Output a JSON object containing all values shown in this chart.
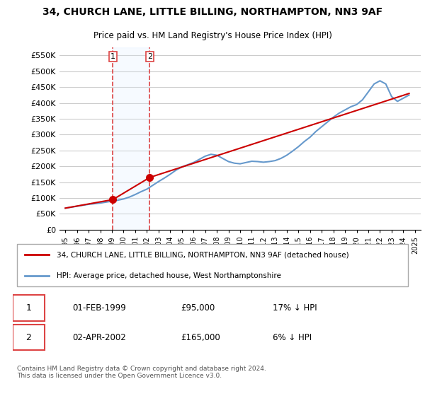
{
  "title": "34, CHURCH LANE, LITTLE BILLING, NORTHAMPTON, NN3 9AF",
  "subtitle": "Price paid vs. HM Land Registry's House Price Index (HPI)",
  "legend_line1": "34, CHURCH LANE, LITTLE BILLING, NORTHAMPTON, NN3 9AF (detached house)",
  "legend_line2": "HPI: Average price, detached house, West Northamptonshire",
  "transaction1_label": "1",
  "transaction1_date": "01-FEB-1999",
  "transaction1_price": "£95,000",
  "transaction1_hpi": "17% ↓ HPI",
  "transaction1_year": 1999.08,
  "transaction1_value": 95000,
  "transaction2_label": "2",
  "transaction2_date": "02-APR-2002",
  "transaction2_price": "£165,000",
  "transaction2_hpi": "6% ↓ HPI",
  "transaction2_year": 2002.25,
  "transaction2_value": 165000,
  "red_color": "#cc0000",
  "blue_color": "#6699cc",
  "marker_color": "#cc0000",
  "vertical_line_color": "#dd4444",
  "highlight_color": "#ddeeff",
  "background_color": "#ffffff",
  "grid_color": "#cccccc",
  "footer_text": "Contains HM Land Registry data © Crown copyright and database right 2024.\nThis data is licensed under the Open Government Licence v3.0.",
  "ylim_min": 0,
  "ylim_max": 575000,
  "yticks": [
    0,
    50000,
    100000,
    150000,
    200000,
    250000,
    300000,
    350000,
    400000,
    450000,
    500000,
    550000
  ],
  "xlabel_years": [
    1995,
    1996,
    1997,
    1998,
    1999,
    2000,
    2001,
    2002,
    2003,
    2004,
    2005,
    2006,
    2007,
    2008,
    2009,
    2010,
    2011,
    2012,
    2013,
    2014,
    2015,
    2016,
    2017,
    2018,
    2019,
    2020,
    2021,
    2022,
    2023,
    2024,
    2025
  ],
  "hpi_years": [
    1995,
    1995.5,
    1996,
    1996.5,
    1997,
    1997.5,
    1998,
    1998.5,
    1999,
    1999.5,
    2000,
    2000.5,
    2001,
    2001.5,
    2002,
    2002.5,
    2003,
    2003.5,
    2004,
    2004.5,
    2005,
    2005.5,
    2006,
    2006.5,
    2007,
    2007.5,
    2008,
    2008.5,
    2009,
    2009.5,
    2010,
    2010.5,
    2011,
    2011.5,
    2012,
    2012.5,
    2013,
    2013.5,
    2014,
    2014.5,
    2015,
    2015.5,
    2016,
    2016.5,
    2017,
    2017.5,
    2018,
    2018.5,
    2019,
    2019.5,
    2020,
    2020.5,
    2021,
    2021.5,
    2022,
    2022.5,
    2023,
    2023.5,
    2024,
    2024.5
  ],
  "hpi_values": [
    68000,
    71000,
    74000,
    77000,
    80000,
    82000,
    84000,
    87000,
    90000,
    93000,
    97000,
    103000,
    111000,
    120000,
    128000,
    140000,
    152000,
    163000,
    175000,
    188000,
    198000,
    205000,
    212000,
    222000,
    232000,
    238000,
    235000,
    225000,
    215000,
    210000,
    208000,
    212000,
    216000,
    215000,
    213000,
    215000,
    218000,
    225000,
    235000,
    248000,
    262000,
    278000,
    292000,
    310000,
    325000,
    340000,
    355000,
    368000,
    378000,
    388000,
    395000,
    410000,
    435000,
    460000,
    470000,
    460000,
    420000,
    405000,
    415000,
    425000
  ],
  "price_years": [
    1995.0,
    1999.08,
    2002.25,
    2024.5
  ],
  "price_values": [
    68000,
    95000,
    165000,
    430000
  ]
}
